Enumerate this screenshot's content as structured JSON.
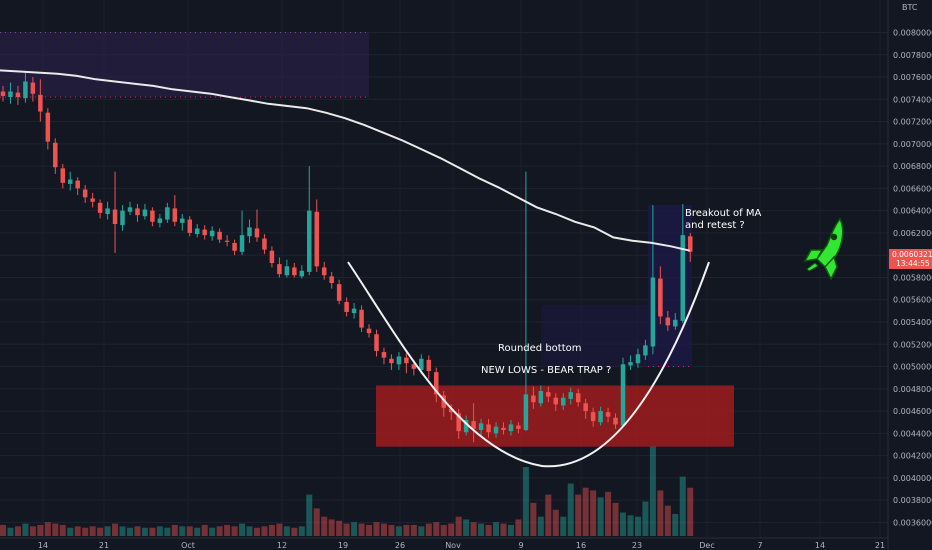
{
  "chart_data": {
    "type": "candlestick",
    "currency": "BTC",
    "y_range": [
      0.00355,
      0.00822
    ],
    "y_ticks": [
      "0.00800000",
      "0.00780000",
      "0.00760000",
      "0.00740000",
      "0.00720000",
      "0.00700000",
      "0.00680000",
      "0.00660000",
      "0.00640000",
      "0.00620000",
      "0.00600000",
      "0.00580000",
      "0.00560000",
      "0.00540000",
      "0.00520000",
      "0.00500000",
      "0.00480000",
      "0.00460000",
      "0.00440000",
      "0.00420000",
      "0.00400000",
      "0.00380000",
      "0.00360000"
    ],
    "x_ticks": [
      "14",
      "21",
      "Oct",
      "12",
      "19",
      "26",
      "Nov",
      "9",
      "16",
      "23",
      "Dec",
      "7",
      "14",
      "21"
    ],
    "price_tag": "0.00603217",
    "time_tag": "13:44:55",
    "annotations": {
      "breakout": [
        "Breakout of MA",
        "and retest ?"
      ],
      "rounded": "Rounded bottom",
      "bear_trap": "NEW LOWS - BEAR TRAP ?"
    },
    "candles": [
      [
        0.00747,
        0.00743,
        0.00752,
        0.00738
      ],
      [
        0.00742,
        0.00747,
        0.00755,
        0.00736
      ],
      [
        0.00746,
        0.00742,
        0.00752,
        0.00735
      ],
      [
        0.00741,
        0.00756,
        0.00765,
        0.00737
      ],
      [
        0.00755,
        0.00745,
        0.0076,
        0.00738
      ],
      [
        0.00744,
        0.00729,
        0.00758,
        0.0072
      ],
      [
        0.00728,
        0.00702,
        0.00732,
        0.00695
      ],
      [
        0.00701,
        0.00679,
        0.00705,
        0.00673
      ],
      [
        0.00678,
        0.00665,
        0.00682,
        0.0066
      ],
      [
        0.00664,
        0.00668,
        0.00675,
        0.00658
      ],
      [
        0.00667,
        0.0066,
        0.0067,
        0.00654
      ],
      [
        0.00659,
        0.00652,
        0.00663,
        0.00647
      ],
      [
        0.00651,
        0.00648,
        0.00656,
        0.00643
      ],
      [
        0.00647,
        0.00638,
        0.0065,
        0.00633
      ],
      [
        0.00637,
        0.00642,
        0.00648,
        0.00632
      ],
      [
        0.00641,
        0.00628,
        0.00675,
        0.00602
      ],
      [
        0.00627,
        0.0064,
        0.00645,
        0.00622
      ],
      [
        0.00639,
        0.00643,
        0.00648,
        0.00636
      ],
      [
        0.00642,
        0.00636,
        0.00646,
        0.0063
      ],
      [
        0.00635,
        0.00641,
        0.00646,
        0.00632
      ],
      [
        0.0064,
        0.0063,
        0.00643,
        0.00626
      ],
      [
        0.00629,
        0.00633,
        0.00637,
        0.00625
      ],
      [
        0.00632,
        0.00643,
        0.00647,
        0.00629
      ],
      [
        0.00642,
        0.0063,
        0.00654,
        0.00626
      ],
      [
        0.00629,
        0.00633,
        0.00637,
        0.00622
      ],
      [
        0.00632,
        0.0062,
        0.00635,
        0.00617
      ],
      [
        0.00619,
        0.00624,
        0.00628,
        0.00616
      ],
      [
        0.00623,
        0.00618,
        0.00627,
        0.00614
      ],
      [
        0.00617,
        0.00622,
        0.00626,
        0.00613
      ],
      [
        0.00621,
        0.00614,
        0.00624,
        0.00611
      ],
      [
        0.00613,
        0.00612,
        0.00618,
        0.00608
      ],
      [
        0.00611,
        0.00604,
        0.00614,
        0.006
      ],
      [
        0.00603,
        0.00618,
        0.0064,
        0.006
      ],
      [
        0.00617,
        0.00625,
        0.00632,
        0.00611
      ],
      [
        0.00624,
        0.00616,
        0.00641,
        0.00612
      ],
      [
        0.00615,
        0.00605,
        0.00619,
        0.00601
      ],
      [
        0.00604,
        0.00593,
        0.00608,
        0.00589
      ],
      [
        0.00592,
        0.00583,
        0.00598,
        0.0058
      ],
      [
        0.00582,
        0.0059,
        0.00596,
        0.0058
      ],
      [
        0.00589,
        0.00582,
        0.00593,
        0.0058
      ],
      [
        0.00581,
        0.00586,
        0.00591,
        0.00579
      ],
      [
        0.00585,
        0.0064,
        0.0068,
        0.00582
      ],
      [
        0.00639,
        0.0059,
        0.0065,
        0.00585
      ],
      [
        0.00589,
        0.00582,
        0.00594,
        0.00578
      ],
      [
        0.00581,
        0.00575,
        0.00585,
        0.0057
      ],
      [
        0.00574,
        0.00559,
        0.00578,
        0.00556
      ],
      [
        0.00558,
        0.00549,
        0.00562,
        0.00545
      ],
      [
        0.00548,
        0.00552,
        0.00557,
        0.00543
      ],
      [
        0.00551,
        0.00535,
        0.00555,
        0.00531
      ],
      [
        0.00534,
        0.0053,
        0.00538,
        0.00526
      ],
      [
        0.00529,
        0.00514,
        0.00533,
        0.00509
      ],
      [
        0.00513,
        0.00508,
        0.00517,
        0.00502
      ],
      [
        0.00507,
        0.00503,
        0.00511,
        0.00497
      ],
      [
        0.00502,
        0.00509,
        0.00513,
        0.00497
      ],
      [
        0.00508,
        0.00503,
        0.00512,
        0.00494
      ],
      [
        0.00502,
        0.00498,
        0.00506,
        0.00492
      ],
      [
        0.00497,
        0.00507,
        0.00511,
        0.00493
      ],
      [
        0.00506,
        0.00496,
        0.0051,
        0.00489
      ],
      [
        0.00495,
        0.00475,
        0.00499,
        0.00468
      ],
      [
        0.00474,
        0.00463,
        0.00478,
        0.00455
      ],
      [
        0.00462,
        0.00459,
        0.00466,
        0.00452
      ],
      [
        0.00458,
        0.00442,
        0.00462,
        0.00435
      ],
      [
        0.00441,
        0.00452,
        0.00456,
        0.00438
      ],
      [
        0.00451,
        0.00444,
        0.00467,
        0.00432
      ],
      [
        0.00443,
        0.00449,
        0.00453,
        0.00438
      ],
      [
        0.00448,
        0.00441,
        0.00453,
        0.00436
      ],
      [
        0.0044,
        0.00446,
        0.0045,
        0.00436
      ],
      [
        0.00445,
        0.00443,
        0.0045,
        0.00439
      ],
      [
        0.00442,
        0.00448,
        0.00452,
        0.00438
      ],
      [
        0.00447,
        0.00444,
        0.0045,
        0.0044
      ],
      [
        0.00443,
        0.00475,
        0.00675,
        0.00442
      ],
      [
        0.00474,
        0.00468,
        0.00482,
        0.00462
      ],
      [
        0.00467,
        0.00478,
        0.00483,
        0.00464
      ],
      [
        0.00477,
        0.00473,
        0.00482,
        0.00468
      ],
      [
        0.00472,
        0.00466,
        0.00476,
        0.0046
      ],
      [
        0.00465,
        0.00472,
        0.00476,
        0.00461
      ],
      [
        0.00471,
        0.00477,
        0.00481,
        0.00466
      ],
      [
        0.00476,
        0.00468,
        0.0048,
        0.00464
      ],
      [
        0.00467,
        0.0046,
        0.00471,
        0.00453
      ],
      [
        0.00459,
        0.00451,
        0.00463,
        0.00446
      ],
      [
        0.0045,
        0.0046,
        0.00464,
        0.00447
      ],
      [
        0.00459,
        0.00455,
        0.00463,
        0.0045
      ],
      [
        0.00454,
        0.00448,
        0.00458,
        0.00444
      ],
      [
        0.00447,
        0.00502,
        0.00508,
        0.00446
      ],
      [
        0.00501,
        0.00504,
        0.0051,
        0.00497
      ],
      [
        0.00503,
        0.00511,
        0.00516,
        0.00499
      ],
      [
        0.0051,
        0.00519,
        0.00524,
        0.00506
      ],
      [
        0.00518,
        0.0058,
        0.00645,
        0.00511
      ],
      [
        0.00579,
        0.00545,
        0.0059,
        0.00538
      ],
      [
        0.00544,
        0.00537,
        0.0055,
        0.00532
      ],
      [
        0.00536,
        0.00542,
        0.00548,
        0.00533
      ],
      [
        0.00541,
        0.00618,
        0.00646,
        0.00539
      ],
      [
        0.00617,
        0.00603,
        0.0062,
        0.00594
      ]
    ],
    "volumes": [
      8,
      6,
      7,
      9,
      7,
      8,
      10,
      9,
      8,
      6,
      7,
      6,
      7,
      6,
      7,
      9,
      7,
      6,
      7,
      6,
      6,
      7,
      6,
      8,
      7,
      7,
      6,
      8,
      6,
      7,
      8,
      7,
      9,
      7,
      6,
      7,
      8,
      9,
      7,
      6,
      7,
      30,
      20,
      14,
      12,
      11,
      9,
      10,
      9,
      8,
      10,
      9,
      8,
      7,
      8,
      8,
      7,
      9,
      10,
      8,
      9,
      14,
      12,
      10,
      9,
      8,
      10,
      9,
      8,
      12,
      50,
      24,
      14,
      30,
      19,
      14,
      38,
      30,
      35,
      33,
      28,
      32,
      24,
      17,
      15,
      14,
      25,
      65,
      33,
      22,
      16,
      43,
      35
    ],
    "ma_values": [
      0.00766,
      0.00765,
      0.00764,
      0.00763,
      0.00761,
      0.00758,
      0.00756,
      0.00754,
      0.00752,
      0.00749,
      0.00747,
      0.00745,
      0.00742,
      0.00739,
      0.00736,
      0.00734,
      0.00732,
      0.00728,
      0.00723,
      0.00717,
      0.0071,
      0.00703,
      0.00695,
      0.00687,
      0.00678,
      0.00669,
      0.00661,
      0.00652,
      0.00643,
      0.00637,
      0.0063,
      0.00625,
      0.00616,
      0.00613,
      0.00611,
      0.00608,
      0.00604
    ],
    "upper_zone": {
      "y_top": 0.008,
      "y_bottom": 0.00742
    },
    "support_zone": {
      "y_top": 0.00483,
      "y_bottom": 0.00428
    },
    "green_box_bottom": 0.005
  }
}
